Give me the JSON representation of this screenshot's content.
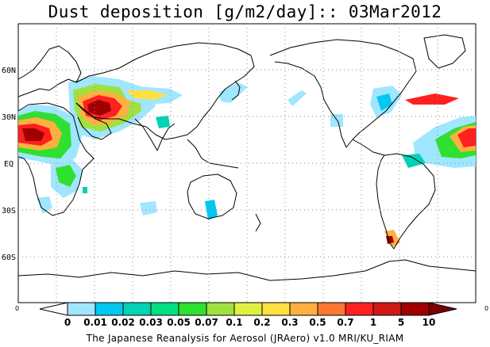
{
  "title": "Dust deposition [g/m2/day]:: 03Mar2012",
  "credit": "The Japanese Reanalysis for Aerosol (JRAero) v1.0 MRI/KU_RIAM",
  "lat_labels": [
    "60N",
    "30N",
    "EQ",
    "30S",
    "60S"
  ],
  "colorbar": {
    "edge_left": "0",
    "edge_right": "0",
    "labels": [
      "0",
      "0.01",
      "0.02",
      "0.03",
      "0.05",
      "0.07",
      "0.1",
      "0.2",
      "0.3",
      "0.5",
      "0.7",
      "1",
      "5",
      "10"
    ],
    "colors": [
      "#ffffff",
      "#a0e6ff",
      "#00c8f0",
      "#00d2b4",
      "#00e080",
      "#30e030",
      "#a0e040",
      "#e0f040",
      "#ffe040",
      "#ffb040",
      "#ff7830",
      "#ff2020",
      "#d01818",
      "#a00000",
      "#7a0000"
    ]
  },
  "colors": {
    "coast": "#000000",
    "grid": "#8c8c8c"
  }
}
